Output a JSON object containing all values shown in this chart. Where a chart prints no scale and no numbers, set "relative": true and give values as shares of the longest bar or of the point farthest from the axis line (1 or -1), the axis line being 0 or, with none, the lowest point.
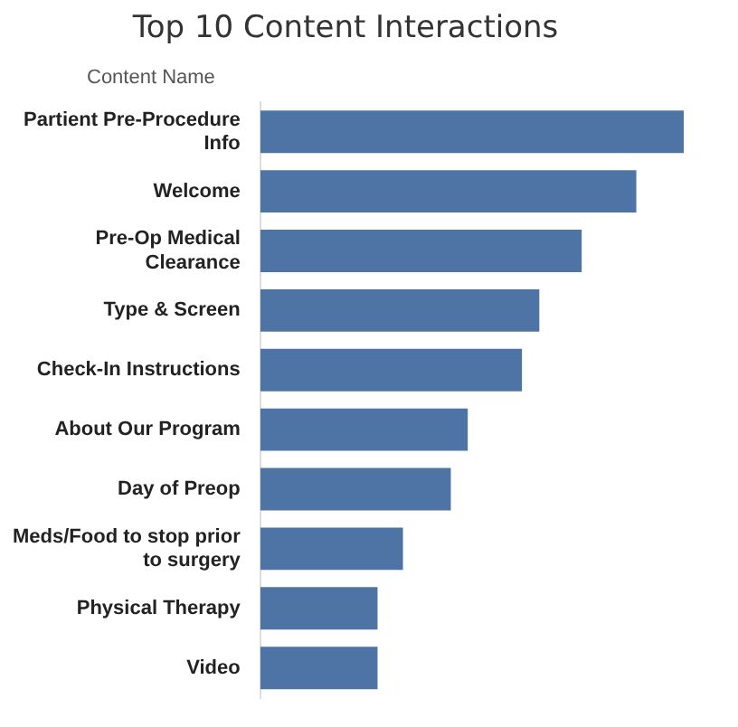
{
  "chart_data": {
    "type": "bar",
    "orientation": "horizontal",
    "relative": true,
    "title": "Top 10 Content Interactions",
    "ylabel": "Content Name",
    "categories": [
      "Partient Pre-Procedure Info",
      "Welcome",
      "Pre-Op Medical Clearance",
      "Type & Screen",
      "Check-In Instructions",
      "About Our Program",
      "Day of Preop",
      "Meds/Food to stop prior to surgery",
      "Physical Therapy",
      "Video"
    ],
    "values": [
      1,
      0.888,
      0.759,
      0.659,
      0.618,
      0.49,
      0.45,
      0.337,
      0.277,
      0.277
    ],
    "color": "#4e74a6",
    "legend": false
  }
}
